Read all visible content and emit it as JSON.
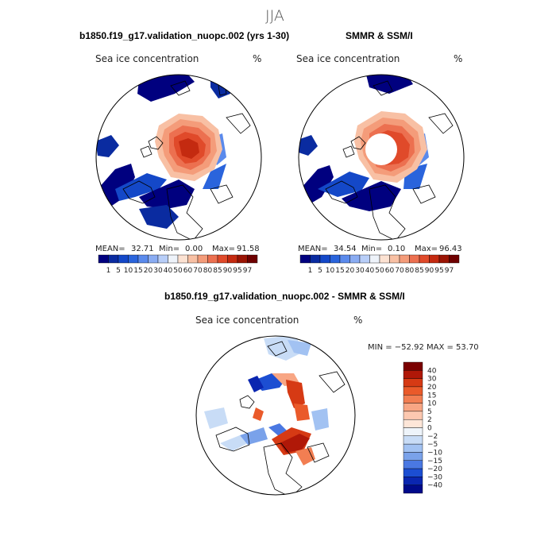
{
  "figure": {
    "season": "JJA",
    "panels": [
      {
        "title": "b1850.f19_g17.validation_nuopc.002 (yrs 1-30)",
        "variable": "Sea ice concentration",
        "units": "%",
        "mean_label": "MEAN=",
        "mean": "32.71",
        "min_label": "Min=",
        "min": "0.00",
        "max_label": "Max=",
        "max": "91.58"
      },
      {
        "title": "SMMR & SSM/I",
        "variable": "Sea ice concentration",
        "units": "%",
        "mean_label": "MEAN=",
        "mean": "34.54",
        "min_label": "Min=",
        "min": "0.10",
        "max_label": "Max=",
        "max": "96.43"
      }
    ],
    "diff": {
      "title": "b1850.f19_g17.validation_nuopc.002 - SMMR & SSM/I",
      "variable": "Sea ice concentration",
      "units": "%",
      "minmax": "MIN = −52.92  MAX =  53.70"
    },
    "colorbar": {
      "ticks": [
        "1",
        "5",
        "10",
        "15",
        "20",
        "30",
        "40",
        "50",
        "60",
        "70",
        "80",
        "85",
        "90",
        "95",
        "97"
      ],
      "colors": [
        "#00007f",
        "#0a2ba0",
        "#1448c8",
        "#2a64dc",
        "#5a8aec",
        "#8aacf2",
        "#b8cef8",
        "#eef3fa",
        "#fce2d2",
        "#f8c0a4",
        "#f49c7a",
        "#ec7050",
        "#e04a2a",
        "#c42a10",
        "#9a1404",
        "#6e0000"
      ]
    },
    "diff_colorbar": {
      "labels": [
        "40",
        "30",
        "20",
        "15",
        "10",
        "5",
        "2",
        "0",
        "−2",
        "−5",
        "−10",
        "−15",
        "−20",
        "−30",
        "−40"
      ],
      "colors": [
        "#7a0000",
        "#b01808",
        "#d63a14",
        "#ea5a2a",
        "#f27e52",
        "#f8a684",
        "#fcc8b0",
        "#fde6d8",
        "#eef4fa",
        "#c8dcf6",
        "#a2c2f2",
        "#7aa2ea",
        "#4a78e2",
        "#1c4ed2",
        "#0a26b0",
        "#000a8a"
      ]
    }
  }
}
